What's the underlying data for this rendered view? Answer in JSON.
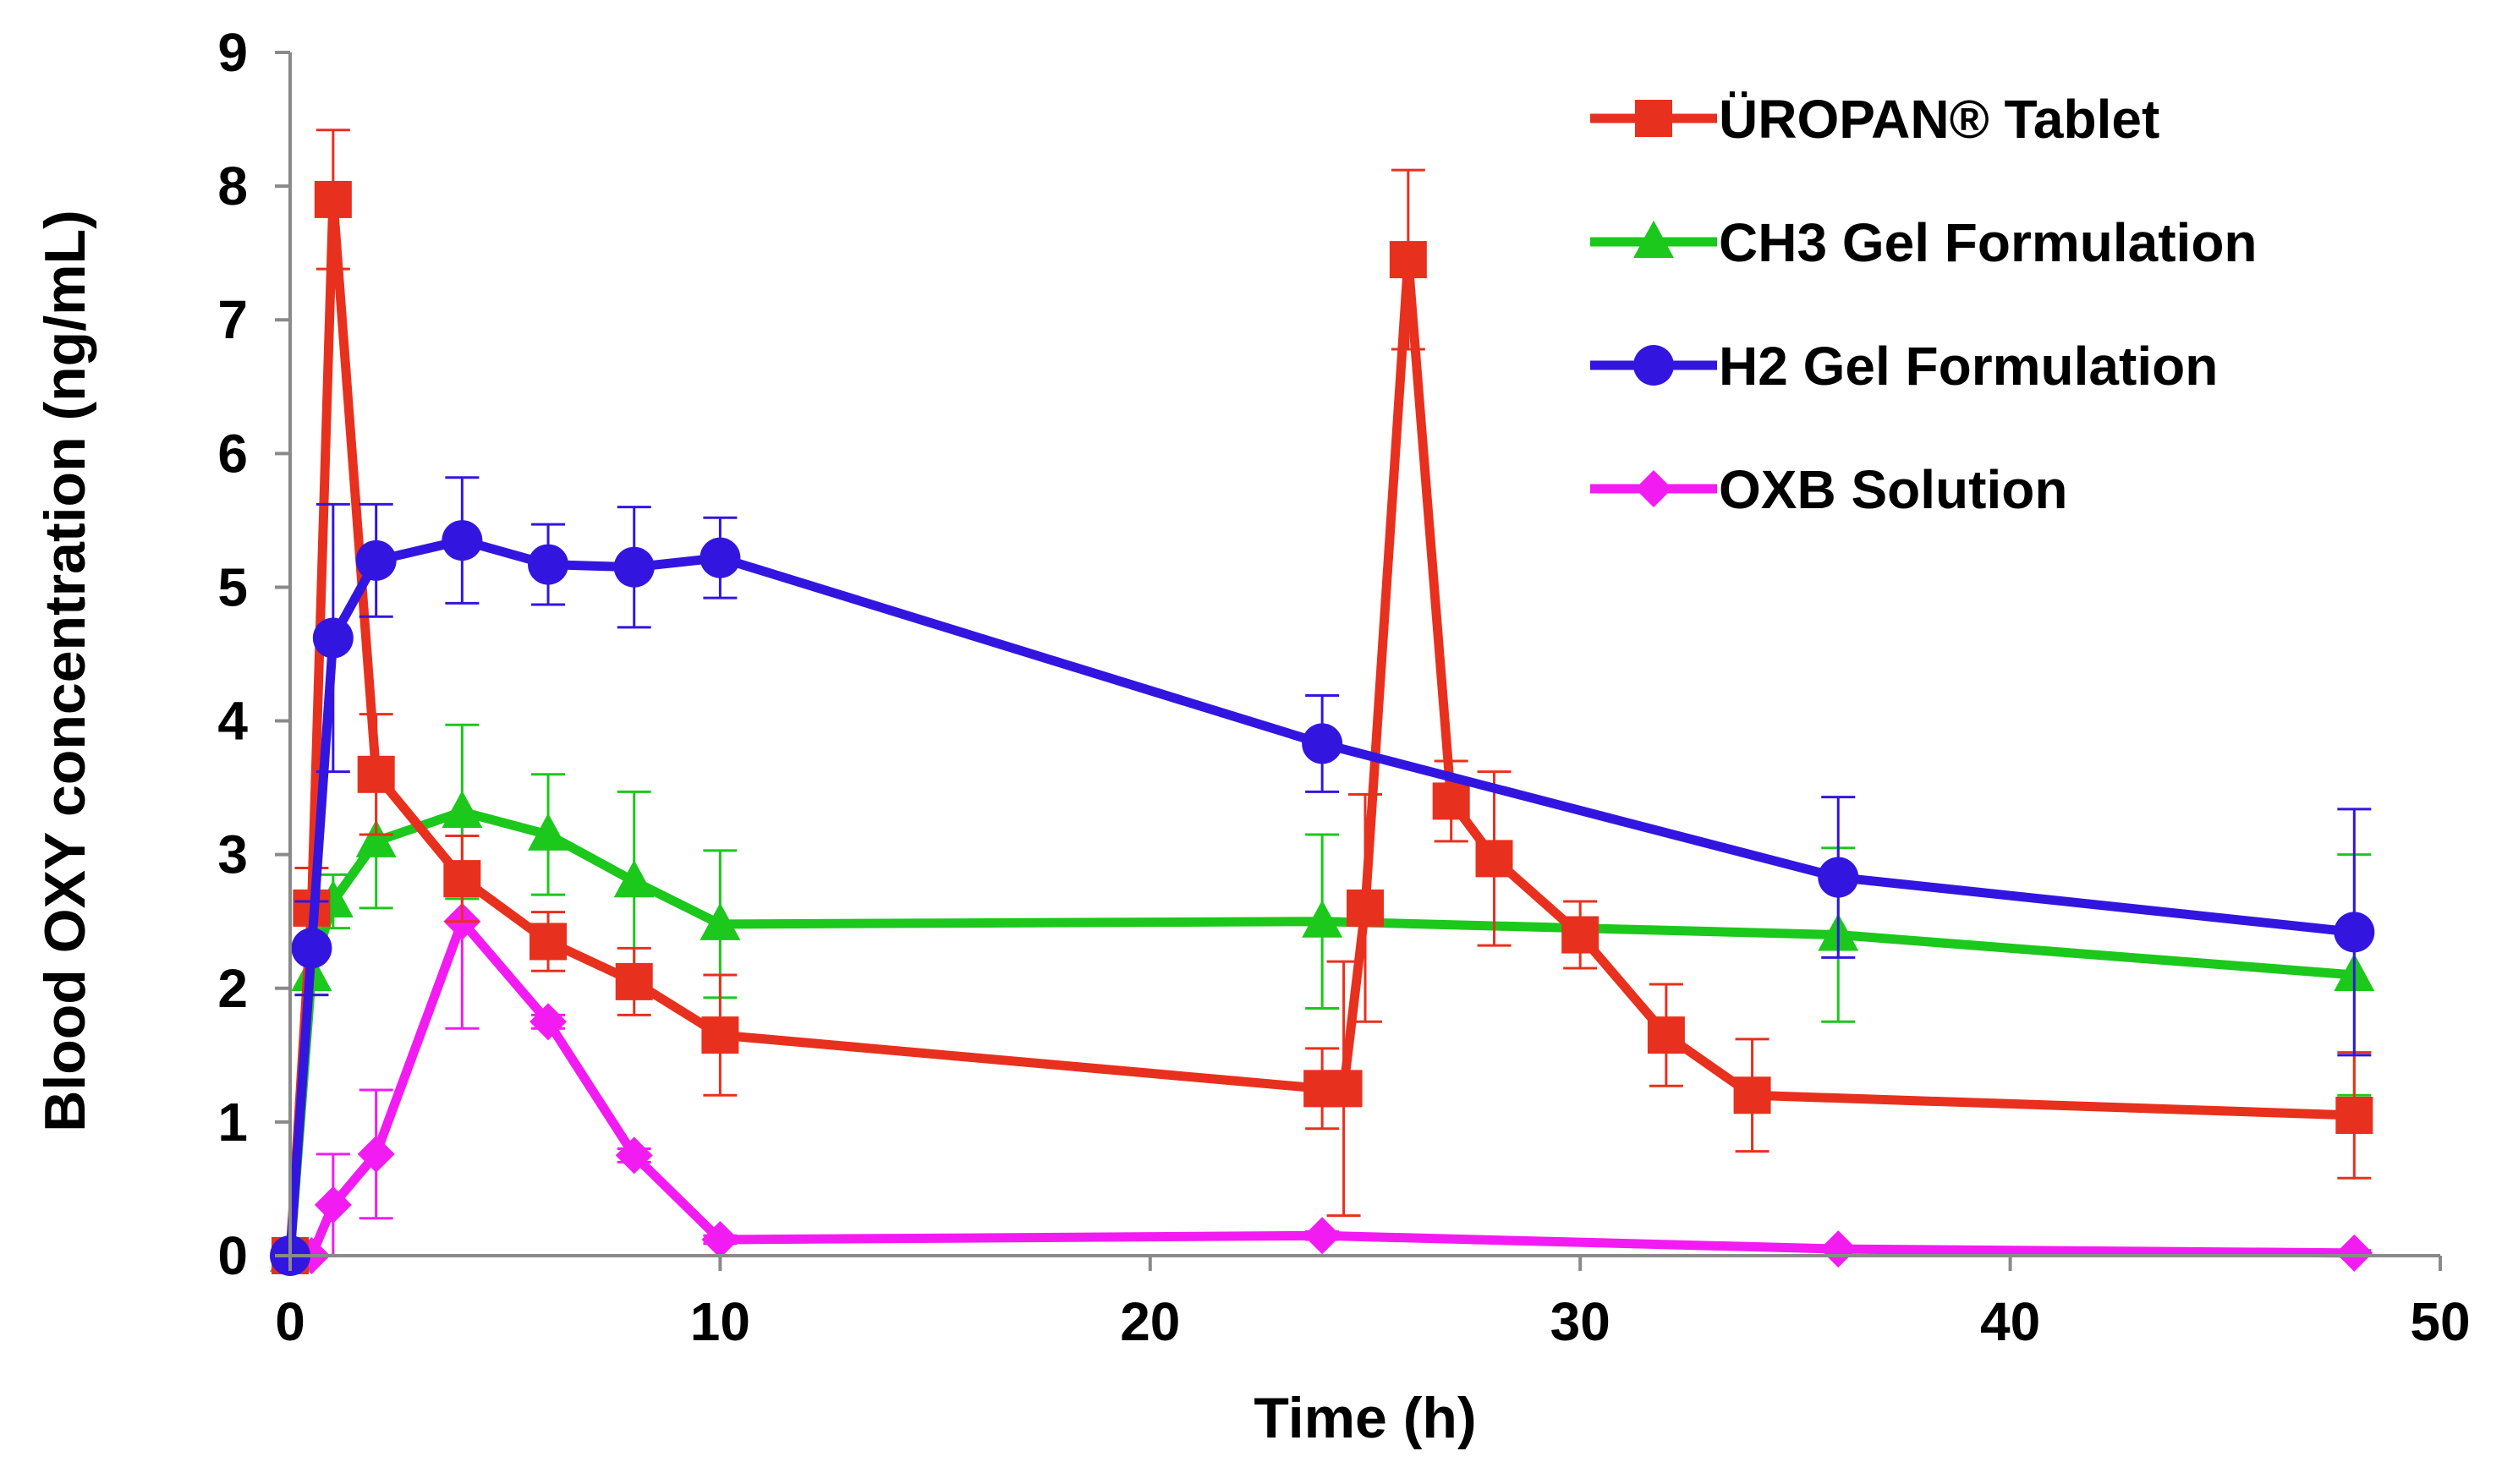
{
  "chart_data": {
    "type": "line",
    "xlabel": "Time (h)",
    "ylabel": "Blood OXY concentration  (ng/mL)",
    "xlim": [
      0,
      50
    ],
    "ylim": [
      0,
      9
    ],
    "x_ticks": [
      "0",
      "10",
      "20",
      "30",
      "40",
      "50"
    ],
    "y_ticks": [
      "0",
      "1",
      "2",
      "3",
      "4",
      "5",
      "6",
      "7",
      "8",
      "9"
    ],
    "grid": false,
    "legend_position": "top-right",
    "series": [
      {
        "name": "ÜROPAN® Tablet",
        "color": "#e8301e",
        "marker": "square",
        "x": [
          0,
          0.5,
          1,
          2,
          4,
          6,
          8,
          10,
          24,
          24.5,
          25,
          26,
          27,
          28,
          30,
          32,
          34,
          48
        ],
        "y": [
          0,
          2.6,
          7.9,
          3.6,
          2.82,
          2.35,
          2.05,
          1.65,
          1.25,
          1.25,
          2.6,
          7.45,
          3.4,
          2.97,
          2.4,
          1.65,
          1.2,
          1.05
        ],
        "err": [
          0,
          0.3,
          0.52,
          0.45,
          0.32,
          0.22,
          0.25,
          0.45,
          0.3,
          0.95,
          0.85,
          0.67,
          0.3,
          0.65,
          0.25,
          0.38,
          0.42,
          0.47
        ]
      },
      {
        "name": "CH3 Gel Formulation",
        "color": "#1bc81b",
        "marker": "triangle",
        "x": [
          0,
          0.5,
          1,
          2,
          4,
          6,
          8,
          10,
          24,
          36,
          48
        ],
        "y": [
          0,
          2.1,
          2.65,
          3.1,
          3.32,
          3.15,
          2.8,
          2.48,
          2.5,
          2.4,
          2.1
        ],
        "err": [
          0,
          0.15,
          0.2,
          0.5,
          0.65,
          0.45,
          0.67,
          0.55,
          0.65,
          0.65,
          0.9
        ]
      },
      {
        "name": "H2 Gel Formulation",
        "color": "#3216e0",
        "marker": "circle",
        "x": [
          0,
          0.5,
          1,
          2,
          4,
          6,
          8,
          10,
          24,
          36,
          48
        ],
        "y": [
          0,
          2.3,
          4.62,
          5.2,
          5.35,
          5.17,
          5.15,
          5.22,
          3.83,
          2.83,
          2.42
        ],
        "err": [
          0,
          0.35,
          1.0,
          0.42,
          0.47,
          0.3,
          0.45,
          0.3,
          0.36,
          0.6,
          0.92
        ]
      },
      {
        "name": "OXB Solution",
        "color": "#f21cf2",
        "marker": "diamond",
        "x": [
          0,
          0.5,
          1,
          2,
          4,
          6,
          8,
          10,
          24,
          36,
          48
        ],
        "y": [
          0,
          0,
          0.38,
          0.76,
          2.5,
          1.75,
          0.75,
          0.12,
          0.15,
          0.05,
          0.02
        ],
        "err": [
          0,
          0,
          0.38,
          0.48,
          0.8,
          0.05,
          0.05,
          0.03,
          0.03,
          0.02,
          0.02
        ]
      }
    ]
  }
}
